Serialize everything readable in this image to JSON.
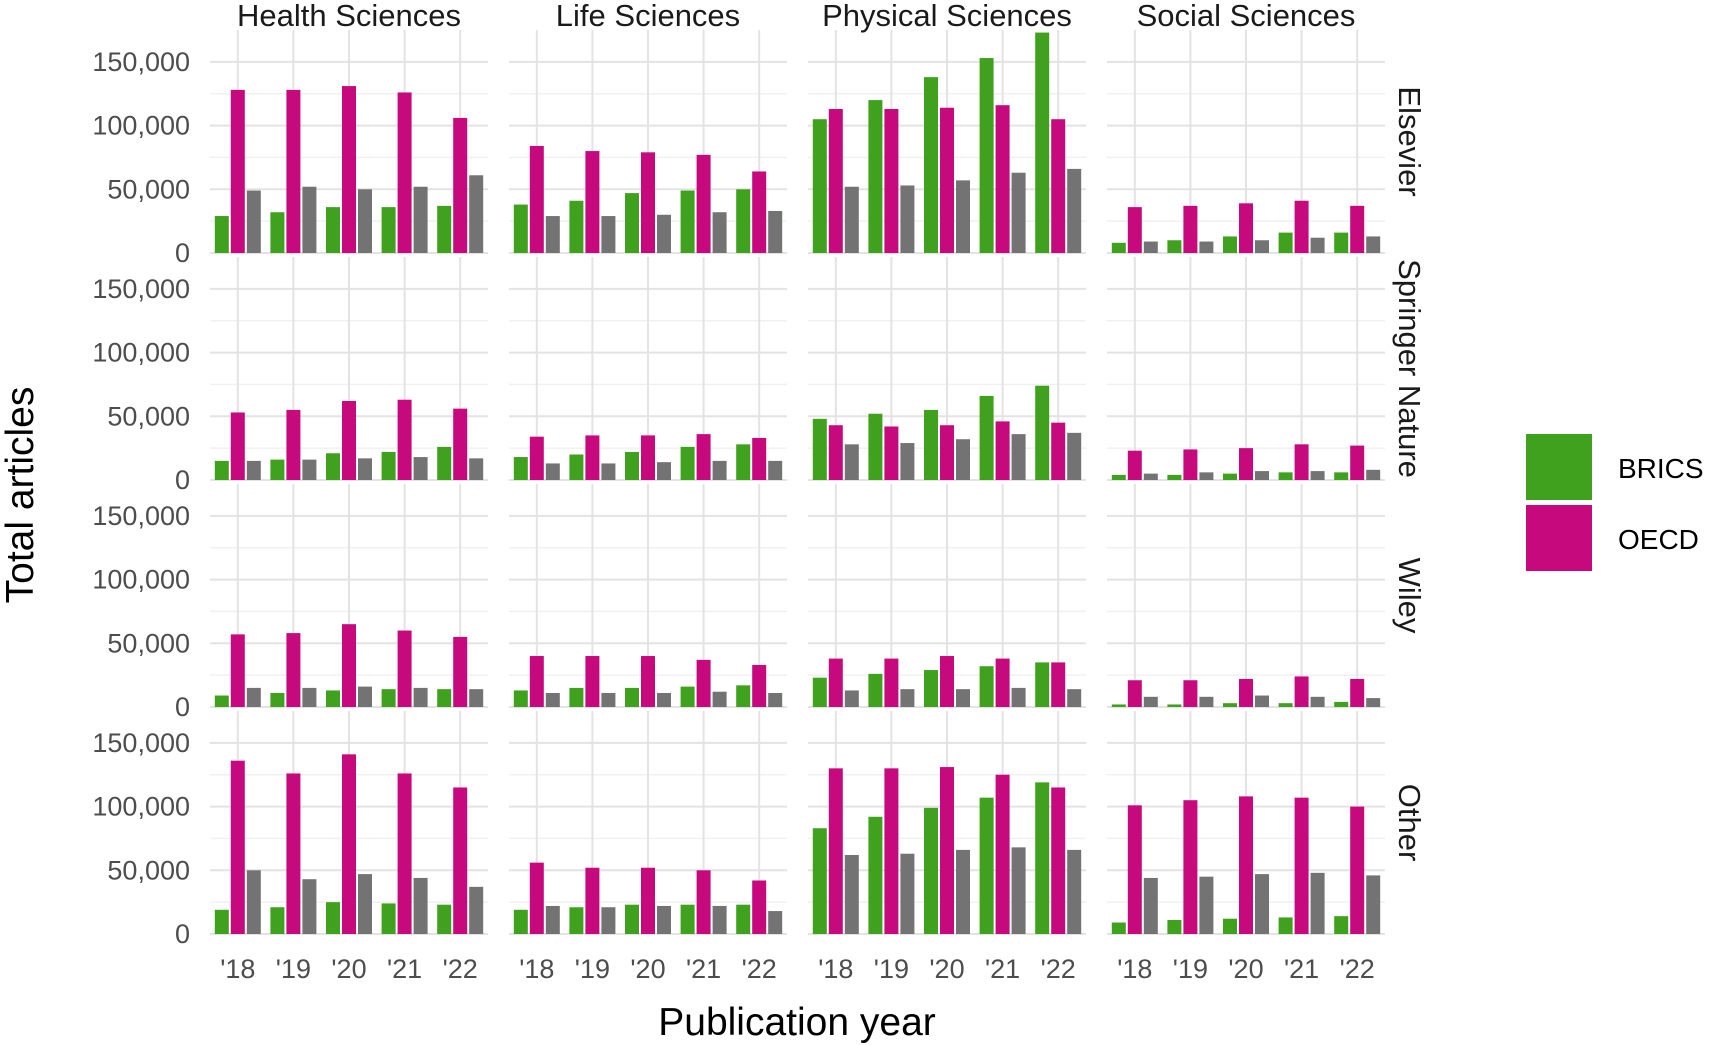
{
  "chart_data": {
    "type": "bar",
    "xlabel": "Publication year",
    "ylabel": "Total articles",
    "ylim": [
      0,
      175000
    ],
    "yticks": [
      0,
      50000,
      100000,
      150000
    ],
    "ytick_labels": [
      "0",
      "50,000",
      "100,000",
      "150,000"
    ],
    "categories": [
      "'18",
      "'19",
      "'20",
      "'21",
      "'22"
    ],
    "columns": [
      "Health Sciences",
      "Life Sciences",
      "Physical Sciences",
      "Social Sciences"
    ],
    "rows": [
      "Elsevier",
      "Springer Nature",
      "Wiley",
      "Other"
    ],
    "legend": {
      "placement": "right",
      "entries": [
        {
          "name": "BRICS",
          "color": "#3fa11d"
        },
        {
          "name": "OECD",
          "color": "#c60a7d"
        }
      ]
    },
    "unlabeled_series_color": "#737373",
    "grid": true,
    "panels": [
      {
        "row": "Elsevier",
        "column": "Health Sciences",
        "BRICS": [
          29000,
          32000,
          36000,
          36000,
          37000
        ],
        "OECD": [
          128000,
          128000,
          131000,
          126000,
          106000
        ],
        "grey": [
          49000,
          52000,
          50000,
          52000,
          61000
        ]
      },
      {
        "row": "Elsevier",
        "column": "Life Sciences",
        "BRICS": [
          38000,
          41000,
          47000,
          49000,
          50000
        ],
        "OECD": [
          84000,
          80000,
          79000,
          77000,
          64000
        ],
        "grey": [
          29000,
          29000,
          30000,
          32000,
          33000
        ]
      },
      {
        "row": "Elsevier",
        "column": "Physical Sciences",
        "BRICS": [
          105000,
          120000,
          138000,
          153000,
          173000
        ],
        "OECD": [
          113000,
          113000,
          114000,
          116000,
          105000
        ],
        "grey": [
          52000,
          53000,
          57000,
          63000,
          66000
        ]
      },
      {
        "row": "Elsevier",
        "column": "Social Sciences",
        "BRICS": [
          8000,
          10000,
          13000,
          16000,
          16000
        ],
        "OECD": [
          36000,
          37000,
          39000,
          41000,
          37000
        ],
        "grey": [
          9000,
          9000,
          10000,
          12000,
          13000
        ]
      },
      {
        "row": "Springer Nature",
        "column": "Health Sciences",
        "BRICS": [
          15000,
          16000,
          21000,
          22000,
          26000
        ],
        "OECD": [
          53000,
          55000,
          62000,
          63000,
          56000
        ],
        "grey": [
          15000,
          16000,
          17000,
          18000,
          17000
        ]
      },
      {
        "row": "Springer Nature",
        "column": "Life Sciences",
        "BRICS": [
          18000,
          20000,
          22000,
          26000,
          28000
        ],
        "OECD": [
          34000,
          35000,
          35000,
          36000,
          33000
        ],
        "grey": [
          13000,
          13000,
          14000,
          15000,
          15000
        ]
      },
      {
        "row": "Springer Nature",
        "column": "Physical Sciences",
        "BRICS": [
          48000,
          52000,
          55000,
          66000,
          74000
        ],
        "OECD": [
          43000,
          42000,
          43000,
          46000,
          45000
        ],
        "grey": [
          28000,
          29000,
          32000,
          36000,
          37000
        ]
      },
      {
        "row": "Springer Nature",
        "column": "Social Sciences",
        "BRICS": [
          4000,
          4000,
          5000,
          6000,
          6000
        ],
        "OECD": [
          23000,
          24000,
          25000,
          28000,
          27000
        ],
        "grey": [
          5000,
          6000,
          7000,
          7000,
          8000
        ]
      },
      {
        "row": "Wiley",
        "column": "Health Sciences",
        "BRICS": [
          9000,
          11000,
          13000,
          14000,
          14000
        ],
        "OECD": [
          57000,
          58000,
          65000,
          60000,
          55000
        ],
        "grey": [
          15000,
          15000,
          16000,
          15000,
          14000
        ]
      },
      {
        "row": "Wiley",
        "column": "Life Sciences",
        "BRICS": [
          13000,
          15000,
          15000,
          16000,
          17000
        ],
        "OECD": [
          40000,
          40000,
          40000,
          37000,
          33000
        ],
        "grey": [
          11000,
          11000,
          11000,
          12000,
          11000
        ]
      },
      {
        "row": "Wiley",
        "column": "Physical Sciences",
        "BRICS": [
          23000,
          26000,
          29000,
          32000,
          35000
        ],
        "OECD": [
          38000,
          38000,
          40000,
          38000,
          35000
        ],
        "grey": [
          13000,
          14000,
          14000,
          15000,
          14000
        ]
      },
      {
        "row": "Wiley",
        "column": "Social Sciences",
        "BRICS": [
          2000,
          2000,
          3000,
          3000,
          4000
        ],
        "OECD": [
          21000,
          21000,
          22000,
          24000,
          22000
        ],
        "grey": [
          8000,
          8000,
          9000,
          8000,
          7000
        ]
      },
      {
        "row": "Other",
        "column": "Health Sciences",
        "BRICS": [
          19000,
          21000,
          25000,
          24000,
          23000
        ],
        "OECD": [
          136000,
          126000,
          141000,
          126000,
          115000
        ],
        "grey": [
          50000,
          43000,
          47000,
          44000,
          37000
        ]
      },
      {
        "row": "Other",
        "column": "Life Sciences",
        "BRICS": [
          19000,
          21000,
          23000,
          23000,
          23000
        ],
        "OECD": [
          56000,
          52000,
          52000,
          50000,
          42000
        ],
        "grey": [
          22000,
          21000,
          22000,
          22000,
          18000
        ]
      },
      {
        "row": "Other",
        "column": "Physical Sciences",
        "BRICS": [
          83000,
          92000,
          99000,
          107000,
          119000
        ],
        "OECD": [
          130000,
          130000,
          131000,
          125000,
          115000
        ],
        "grey": [
          62000,
          63000,
          66000,
          68000,
          66000
        ]
      },
      {
        "row": "Other",
        "column": "Social Sciences",
        "BRICS": [
          9000,
          11000,
          12000,
          13000,
          14000
        ],
        "OECD": [
          101000,
          105000,
          108000,
          107000,
          100000
        ],
        "grey": [
          44000,
          45000,
          47000,
          48000,
          46000
        ]
      }
    ]
  }
}
